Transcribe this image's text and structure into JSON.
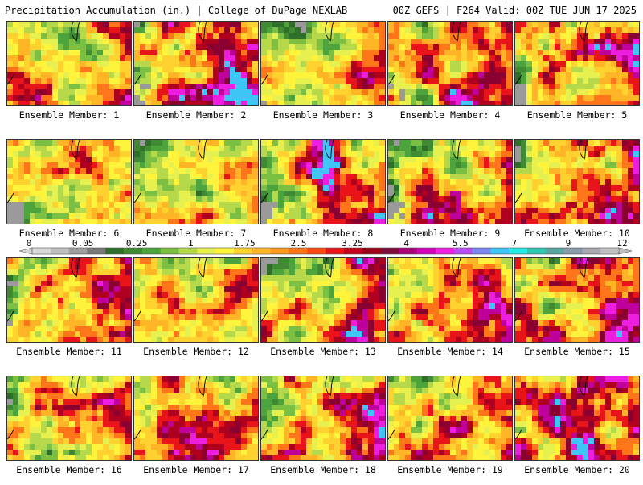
{
  "header": {
    "left": "Precipitation Accumulation (in.) | College of DuPage NEXLAB",
    "right": "00Z GEFS | F264 Valid: 00Z TUE JUN 17 2025"
  },
  "panels": [
    {
      "label": "Ensemble Member: 1",
      "intensity": 0.55
    },
    {
      "label": "Ensemble Member: 2",
      "intensity": 0.65
    },
    {
      "label": "Ensemble Member: 3",
      "intensity": 0.3
    },
    {
      "label": "Ensemble Member: 4",
      "intensity": 0.55
    },
    {
      "label": "Ensemble Member: 5",
      "intensity": 0.6
    },
    {
      "label": "Ensemble Member: 6",
      "intensity": 0.5
    },
    {
      "label": "Ensemble Member: 7",
      "intensity": 0.3
    },
    {
      "label": "Ensemble Member: 8",
      "intensity": 0.7
    },
    {
      "label": "Ensemble Member: 9",
      "intensity": 0.55
    },
    {
      "label": "Ensemble Member: 10",
      "intensity": 0.7
    },
    {
      "label": "Ensemble Member: 11",
      "intensity": 0.55
    },
    {
      "label": "Ensemble Member: 12",
      "intensity": 0.45
    },
    {
      "label": "Ensemble Member: 13",
      "intensity": 0.5
    },
    {
      "label": "Ensemble Member: 14",
      "intensity": 0.55
    },
    {
      "label": "Ensemble Member: 15",
      "intensity": 0.6
    },
    {
      "label": "Ensemble Member: 16",
      "intensity": 0.5
    },
    {
      "label": "Ensemble Member: 17",
      "intensity": 0.55
    },
    {
      "label": "Ensemble Member: 18",
      "intensity": 0.6
    },
    {
      "label": "Ensemble Member: 19",
      "intensity": 0.45
    },
    {
      "label": "Ensemble Member: 20",
      "intensity": 0.75
    }
  ],
  "colorbar": {
    "colors": [
      "#d8d8d8",
      "#bdbdbd",
      "#9e9e9e",
      "#7a7a7a",
      "#2f6f2a",
      "#3f8a33",
      "#4da43c",
      "#7cc043",
      "#b5d94b",
      "#e6f04e",
      "#fff33c",
      "#ffd22f",
      "#ffb526",
      "#ff9a1f",
      "#ff7519",
      "#ff4a14",
      "#e8141a",
      "#c00018",
      "#9a0016",
      "#7e0a3a",
      "#a8007a",
      "#d400b8",
      "#ee1ee0",
      "#b84cf0",
      "#7e86f2",
      "#3fc6f7",
      "#25ece8",
      "#30c8b0",
      "#5aa6a0",
      "#8a9aa8",
      "#a8a8b0",
      "#c0c0c0"
    ],
    "tick_labels": [
      "0",
      "0.05",
      "0.25",
      "1",
      "1.75",
      "2.5",
      "3.25",
      "4",
      "5.5",
      "7",
      "9",
      "12"
    ]
  }
}
